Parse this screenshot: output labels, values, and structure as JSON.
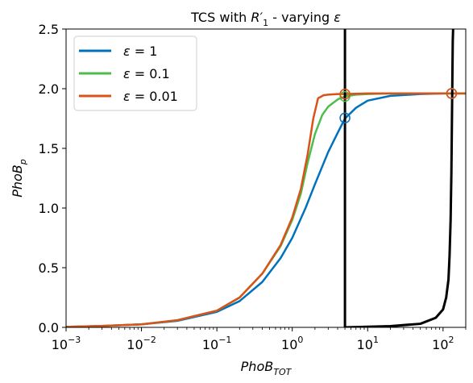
{
  "chart_data": {
    "type": "line",
    "title_prefix": "TCS with ",
    "title_r": "R",
    "title_prime": "′",
    "title_sub": "1",
    "title_suffix": " - varying ",
    "title_eps": "ε",
    "xlabel_main": "PhoB",
    "xlabel_sub": "TOT",
    "ylabel_main": "PhoB",
    "ylabel_sub": "p",
    "x_scale": "log",
    "xlim": [
      0.001,
      200
    ],
    "ylim": [
      0,
      2.5
    ],
    "x_ticks": [
      {
        "value": 0.001,
        "base": "10",
        "exp": "−3"
      },
      {
        "value": 0.01,
        "base": "10",
        "exp": "−2"
      },
      {
        "value": 0.1,
        "base": "10",
        "exp": "−1"
      },
      {
        "value": 1,
        "base": "10",
        "exp": "0"
      },
      {
        "value": 10,
        "base": "10",
        "exp": "1"
      },
      {
        "value": 100,
        "base": "10",
        "exp": "2"
      }
    ],
    "y_ticks": [
      {
        "value": 0.0,
        "label": "0.0"
      },
      {
        "value": 0.5,
        "label": "0.5"
      },
      {
        "value": 1.0,
        "label": "1.0"
      },
      {
        "value": 1.5,
        "label": "1.5"
      },
      {
        "value": 2.0,
        "label": "2.0"
      },
      {
        "value": 2.5,
        "label": "2.5"
      }
    ],
    "grid": false,
    "legend_position": "top-left",
    "series": [
      {
        "name": "ε = 1",
        "legend_eps": "ε",
        "legend_val": " = 1",
        "color": "#0072BD",
        "x": [
          0.001,
          0.003,
          0.01,
          0.03,
          0.1,
          0.2,
          0.4,
          0.7,
          1.0,
          1.5,
          2.0,
          3.0,
          4.0,
          5.0,
          7.0,
          10,
          20,
          50,
          100,
          200
        ],
        "y": [
          0.004,
          0.012,
          0.025,
          0.055,
          0.13,
          0.22,
          0.38,
          0.58,
          0.75,
          1.0,
          1.2,
          1.47,
          1.63,
          1.75,
          1.84,
          1.9,
          1.94,
          1.955,
          1.96,
          1.96
        ]
      },
      {
        "name": "ε = 0.1",
        "legend_eps": "ε",
        "legend_val": " = 0.1",
        "color": "#4DBE4D",
        "x": [
          0.001,
          0.003,
          0.01,
          0.03,
          0.1,
          0.2,
          0.4,
          0.7,
          1.0,
          1.3,
          1.6,
          2.0,
          2.5,
          3.0,
          4.0,
          5.0,
          7.0,
          10,
          20,
          50,
          100,
          200
        ],
        "y": [
          0.004,
          0.012,
          0.025,
          0.06,
          0.14,
          0.25,
          0.45,
          0.68,
          0.9,
          1.12,
          1.38,
          1.62,
          1.78,
          1.85,
          1.91,
          1.935,
          1.95,
          1.955,
          1.96,
          1.96,
          1.96,
          1.96
        ]
      },
      {
        "name": "ε = 0.01",
        "legend_eps": "ε",
        "legend_val": " = 0.01",
        "color": "#D95319",
        "x": [
          0.001,
          0.003,
          0.01,
          0.03,
          0.1,
          0.2,
          0.4,
          0.7,
          1.0,
          1.3,
          1.6,
          1.9,
          2.2,
          2.6,
          3.0,
          4.0,
          5.0,
          10,
          50,
          100,
          200
        ],
        "y": [
          0.004,
          0.012,
          0.025,
          0.06,
          0.14,
          0.25,
          0.45,
          0.69,
          0.92,
          1.16,
          1.45,
          1.75,
          1.92,
          1.945,
          1.95,
          1.955,
          1.955,
          1.96,
          1.96,
          1.96,
          1.96
        ]
      },
      {
        "name": "",
        "color": "#000000",
        "x": [
          5,
          5
        ],
        "y": [
          0,
          2.5
        ]
      },
      {
        "name": "",
        "color": "#000000",
        "x": [
          5,
          20,
          50,
          80,
          100,
          110,
          118,
          122,
          126,
          129,
          131,
          133,
          134.5,
          136
        ],
        "y": [
          0.0,
          0.01,
          0.03,
          0.08,
          0.15,
          0.25,
          0.4,
          0.6,
          0.9,
          1.3,
          1.7,
          2.1,
          2.4,
          2.5
        ]
      }
    ],
    "markers": [
      {
        "x": 5,
        "y": 1.755,
        "color": "#0072BD"
      },
      {
        "x": 5,
        "y": 1.935,
        "color": "#4DBE4D"
      },
      {
        "x": 5,
        "y": 1.955,
        "color": "#D95319"
      },
      {
        "x": 130,
        "y": 1.96,
        "color": "#0072BD"
      },
      {
        "x": 130,
        "y": 1.96,
        "color": "#4DBE4D"
      },
      {
        "x": 130,
        "y": 1.96,
        "color": "#D95319"
      }
    ]
  }
}
